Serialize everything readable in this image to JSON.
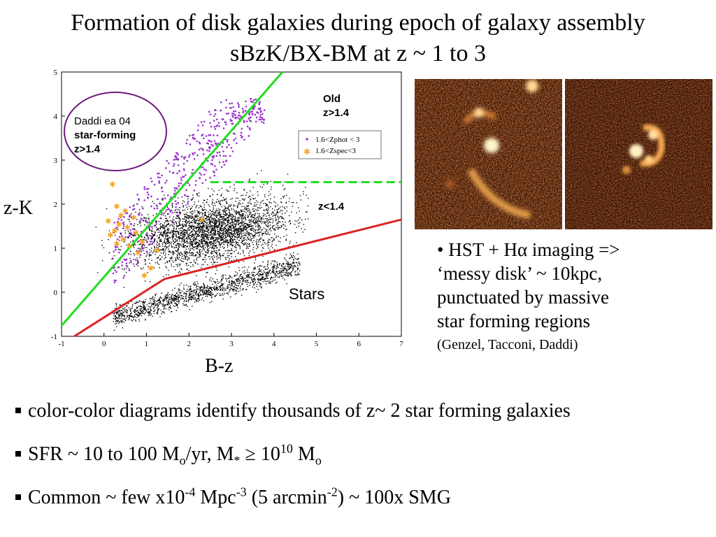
{
  "slide": {
    "title_line1": "Formation of disk galaxies during epoch of galaxy assembly",
    "title_line2": "sBzK/BX-BM  at z  ~ 1 to 3"
  },
  "chart_data": {
    "type": "scatter",
    "xlabel": "B-z",
    "ylabel": "z-K",
    "xlim": [
      -1,
      7
    ],
    "ylim": [
      -1,
      5
    ],
    "x_ticks": [
      "-1",
      "0",
      "1",
      "2",
      "3",
      "4",
      "5",
      "6",
      "7"
    ],
    "y_ticks": [
      "-1",
      "0",
      "1",
      "2",
      "3",
      "4",
      "5"
    ],
    "legend": {
      "placement": "top-right",
      "entries": [
        "1.6<Zphot < 3",
        "1.6<Zspec<3"
      ]
    },
    "annotations": {
      "circle_text": [
        "Daddi ea 04",
        "star-forming",
        "z>1.4"
      ],
      "old": [
        "Old",
        "z>1.4"
      ],
      "mid": "z<1.4",
      "stars": "Stars"
    },
    "lines": [
      {
        "name": "sBzK boundary",
        "color": "#22dd22",
        "style": "solid",
        "points": [
          [
            -1,
            -0.76
          ],
          [
            4.2,
            5
          ]
        ]
      },
      {
        "name": "pBzK boundary",
        "color": "#22dd22",
        "style": "dashed",
        "points": [
          [
            2.5,
            2.5
          ],
          [
            7,
            2.5
          ]
        ]
      },
      {
        "name": "stellar locus boundary",
        "color": "#dd2222",
        "style": "solid",
        "points": [
          [
            -0.7,
            -1
          ],
          [
            1.42,
            0.3
          ],
          [
            7,
            1.65
          ]
        ]
      }
    ],
    "series": [
      {
        "name": "1.6<Zphot < 3",
        "color": "#9933cc",
        "marker": "dot"
      },
      {
        "name": "1.6<Zspec<3",
        "color": "#f2a52a",
        "marker": "star",
        "points": [
          [
            0.2,
            2.45
          ],
          [
            0.3,
            1.95
          ],
          [
            0.5,
            1.85
          ],
          [
            0.4,
            1.75
          ],
          [
            0.1,
            1.62
          ],
          [
            0.35,
            1.55
          ],
          [
            0.55,
            1.48
          ],
          [
            0.25,
            1.4
          ],
          [
            0.7,
            1.7
          ],
          [
            0.45,
            1.2
          ],
          [
            0.6,
            1.05
          ],
          [
            0.9,
            1.15
          ],
          [
            0.3,
            1.1
          ],
          [
            0.8,
            0.9
          ],
          [
            1.1,
            0.55
          ],
          [
            0.95,
            0.38
          ],
          [
            1.25,
            0.95
          ],
          [
            2.3,
            1.65
          ],
          [
            0.15,
            1.3
          ],
          [
            0.75,
            1.35
          ]
        ]
      }
    ],
    "point_density_regions": [
      {
        "name": "galaxies",
        "center": [
          2.6,
          1.4
        ],
        "spread": [
          0.9,
          0.35
        ]
      },
      {
        "name": "stars",
        "center": [
          3.0,
          0.5
        ],
        "spread": [
          1.2,
          0.15
        ]
      }
    ]
  },
  "images": {
    "panel_left_name": "HST H-alpha image 1",
    "panel_right_name": "HST H-alpha image 2"
  },
  "notes": {
    "line1": "• HST + Hα imaging =>",
    "line2": "‘messy disk’ ~ 10kpc,",
    "line3": "punctuated by massive",
    "line4": "star forming regions",
    "line5": "(Genzel, Tacconi, Daddi)"
  },
  "bullets": {
    "b1": "color-color diagrams  identify thousands of z~ 2 star forming galaxies",
    "b2_a": "SFR ~ 10 to 100 M",
    "b2_b": "o",
    "b2_c": "/yr,   M",
    "b2_d": "*",
    "b2_e": " ≥ 10",
    "b2_f": "10",
    "b2_g": " M",
    "b2_h": "o",
    "b3_a": "Common ~ few x10",
    "b3_b": "-4",
    "b3_c": " Mpc",
    "b3_d": "-3",
    "b3_e": " (5 arcmin",
    "b3_f": "-2",
    "b3_g": ") ~ 100x SMG"
  }
}
